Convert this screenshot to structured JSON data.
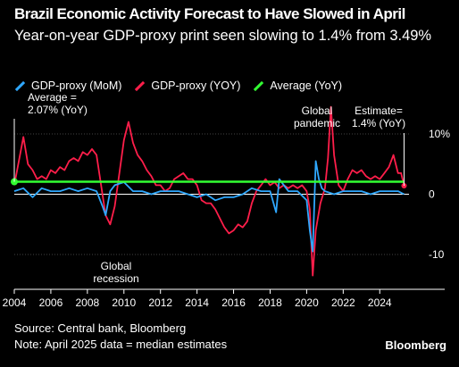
{
  "title": "Brazil Economic Activity Forecast to Have Slowed in April",
  "subtitle": "Year-on-year GDP-proxy print seen slowing to 1.4% from 3.49%",
  "footer": {
    "source": "Source: Central bank, Bloomberg",
    "note": "Note: April 2025 data = median estimates",
    "brand": "Bloomberg"
  },
  "colors": {
    "mom": "#2fa8ff",
    "yoy": "#ff1e4a",
    "average": "#33ff33",
    "axis": "#ffffff",
    "grid": "#444444"
  },
  "chart_data": {
    "type": "line",
    "title": "",
    "xlabel": "",
    "ylabel": "",
    "xlim": [
      2004.0,
      2025.6
    ],
    "ylim": [
      -14,
      14
    ],
    "x_ticks": [
      2004,
      2006,
      2008,
      2010,
      2012,
      2014,
      2016,
      2018,
      2020,
      2022,
      2024
    ],
    "x_tick_labels": [
      "2004",
      "2006",
      "2008",
      "2010",
      "2012",
      "2014",
      "2016",
      "2018",
      "2020",
      "2022",
      "2024"
    ],
    "y_ticks": [
      10,
      0,
      -10
    ],
    "y_tick_labels": [
      "10%",
      "0",
      "-10"
    ],
    "legend": {
      "placement": "top-left",
      "entries": [
        "GDP-proxy (MoM)",
        "GDP-proxy (YOY)",
        "Average (YoY)"
      ]
    },
    "series": [
      {
        "name": "GDP-proxy (YOY)",
        "color": "#ff1e4a",
        "x": [
          2004.0,
          2004.25,
          2004.5,
          2004.75,
          2005.0,
          2005.25,
          2005.5,
          2005.75,
          2006.0,
          2006.25,
          2006.5,
          2006.75,
          2007.0,
          2007.25,
          2007.5,
          2007.75,
          2008.0,
          2008.25,
          2008.5,
          2008.75,
          2009.0,
          2009.25,
          2009.5,
          2009.75,
          2010.0,
          2010.25,
          2010.5,
          2010.75,
          2011.0,
          2011.25,
          2011.5,
          2011.75,
          2012.0,
          2012.25,
          2012.5,
          2012.75,
          2013.0,
          2013.25,
          2013.5,
          2013.75,
          2014.0,
          2014.25,
          2014.5,
          2014.75,
          2015.0,
          2015.25,
          2015.5,
          2015.75,
          2016.0,
          2016.25,
          2016.5,
          2016.75,
          2017.0,
          2017.25,
          2017.5,
          2017.75,
          2018.0,
          2018.25,
          2018.5,
          2018.75,
          2019.0,
          2019.25,
          2019.5,
          2019.75,
          2020.0,
          2020.17,
          2020.33,
          2020.5,
          2020.75,
          2021.0,
          2021.17,
          2021.33,
          2021.5,
          2021.75,
          2022.0,
          2022.25,
          2022.5,
          2022.75,
          2023.0,
          2023.25,
          2023.5,
          2023.75,
          2024.0,
          2024.25,
          2024.5,
          2024.75,
          2025.0,
          2025.17,
          2025.33
        ],
        "values": [
          1.5,
          5.5,
          9.5,
          5.0,
          4.0,
          2.5,
          3.0,
          2.5,
          4.0,
          3.5,
          4.5,
          4.0,
          5.5,
          6.0,
          5.5,
          7.0,
          6.5,
          7.5,
          6.5,
          1.5,
          -3.5,
          -5.0,
          -2.0,
          3.5,
          9.0,
          12.0,
          8.5,
          6.5,
          5.5,
          4.0,
          3.0,
          1.5,
          1.5,
          0.5,
          1.0,
          2.5,
          3.0,
          3.5,
          2.5,
          2.5,
          1.5,
          -1.0,
          -1.5,
          -1.5,
          -2.5,
          -4.0,
          -5.5,
          -6.5,
          -6.0,
          -5.0,
          -5.5,
          -4.5,
          -1.5,
          0.5,
          1.5,
          2.5,
          1.5,
          2.0,
          1.0,
          1.5,
          1.0,
          1.5,
          1.0,
          1.5,
          0.5,
          -2.5,
          -13.5,
          -6.0,
          -1.5,
          1.0,
          6.0,
          14.5,
          6.5,
          1.5,
          0.5,
          2.5,
          4.0,
          3.5,
          4.0,
          3.0,
          2.5,
          3.0,
          2.5,
          3.5,
          4.5,
          6.5,
          3.5,
          3.49,
          1.4
        ]
      },
      {
        "name": "GDP-proxy (MoM)",
        "color": "#2fa8ff",
        "x": [
          2004.0,
          2004.5,
          2005.0,
          2005.5,
          2006.0,
          2006.5,
          2007.0,
          2007.5,
          2008.0,
          2008.5,
          2008.83,
          2009.0,
          2009.25,
          2009.5,
          2010.0,
          2010.5,
          2011.0,
          2011.5,
          2012.0,
          2012.5,
          2013.0,
          2013.5,
          2014.0,
          2014.5,
          2015.0,
          2015.5,
          2016.0,
          2016.5,
          2017.0,
          2017.5,
          2018.0,
          2018.33,
          2018.5,
          2019.0,
          2019.5,
          2020.0,
          2020.17,
          2020.33,
          2020.5,
          2020.67,
          2020.83,
          2021.0,
          2021.5,
          2022.0,
          2022.5,
          2023.0,
          2023.5,
          2024.0,
          2024.5,
          2025.0,
          2025.33
        ],
        "values": [
          0.5,
          1.0,
          -0.5,
          1.0,
          0.5,
          0.5,
          1.0,
          0.5,
          1.0,
          0.5,
          -2.0,
          -3.5,
          0.5,
          1.5,
          2.0,
          0.5,
          0.5,
          0.0,
          0.5,
          0.5,
          0.5,
          0.0,
          -0.5,
          0.0,
          -1.0,
          -0.5,
          -0.5,
          0.0,
          1.0,
          0.5,
          0.5,
          -3.0,
          2.5,
          0.5,
          0.5,
          -1.0,
          -6.0,
          -9.5,
          5.5,
          2.5,
          1.0,
          0.5,
          0.0,
          0.5,
          0.5,
          0.5,
          0.0,
          0.5,
          0.5,
          0.5,
          0.0
        ]
      },
      {
        "name": "Average (YoY)",
        "color": "#33ff33",
        "x": [
          2004.0,
          2025.33
        ],
        "values": [
          2.07,
          2.07
        ]
      }
    ],
    "annotations": [
      {
        "text": "Average = 2.07% (YoY)",
        "x": 2004.0,
        "y": 2.07
      },
      {
        "text": "Global recession",
        "x": 2009.0,
        "y": -10
      },
      {
        "text": "Global pandemic",
        "x": 2020.4,
        "y": 14
      },
      {
        "text": "Estimate= 1.4% (YoY)",
        "x": 2025.33,
        "y": 1.4
      }
    ]
  }
}
